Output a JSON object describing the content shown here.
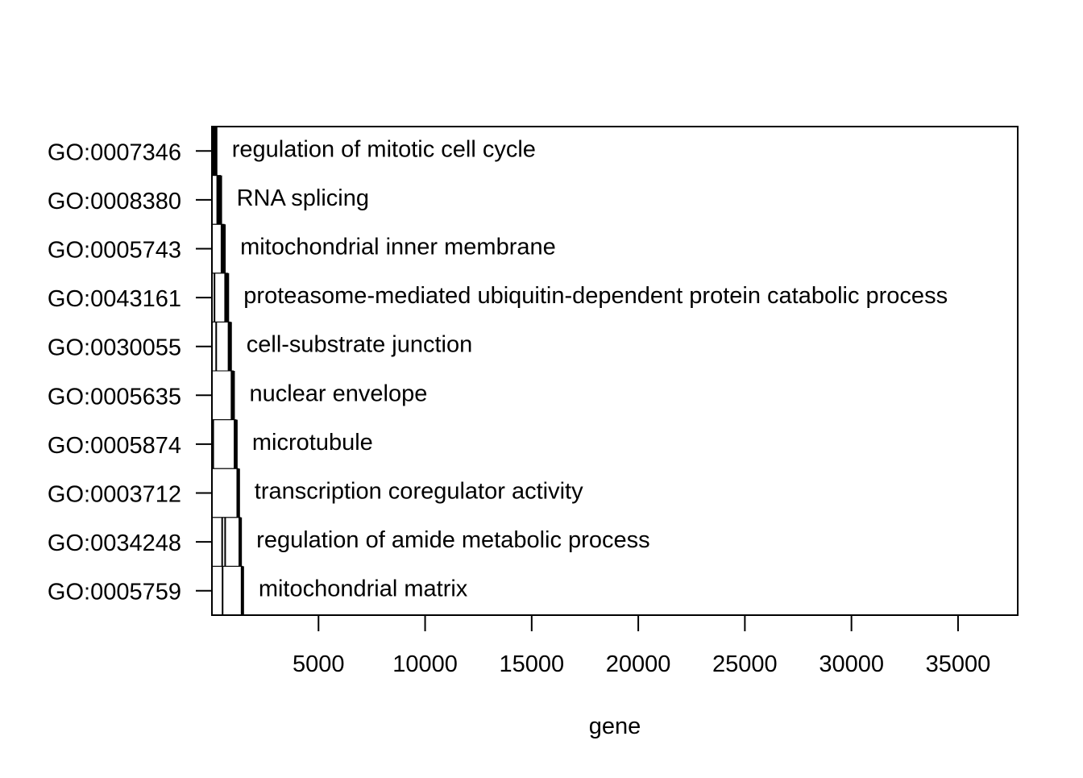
{
  "chart_data": {
    "type": "barcode",
    "xlabel": "gene",
    "ylabel": "",
    "title": "",
    "xlim": [
      0,
      37800
    ],
    "x_ticks": [
      {
        "value": 5000,
        "label": "5000"
      },
      {
        "value": 10000,
        "label": "10000"
      },
      {
        "value": 15000,
        "label": "15000"
      },
      {
        "value": 20000,
        "label": "20000"
      },
      {
        "value": 25000,
        "label": "25000"
      },
      {
        "value": 30000,
        "label": "30000"
      },
      {
        "value": 35000,
        "label": "35000"
      }
    ],
    "rows": [
      {
        "id": "GO:0007346",
        "term": "regulation of mitotic cell cycle",
        "end": 180,
        "gene_positions": [
          40,
          60,
          80,
          100,
          120
        ]
      },
      {
        "id": "GO:0008380",
        "term": "RNA splicing",
        "end": 400,
        "gene_positions": [
          250,
          280,
          300,
          330
        ]
      },
      {
        "id": "GO:0005743",
        "term": "mitochondrial inner membrane",
        "end": 570,
        "gene_positions": [
          450,
          480,
          500,
          520
        ]
      },
      {
        "id": "GO:0043161",
        "term": "proteasome-mediated ubiquitin-dependent protein catabolic process",
        "end": 730,
        "gene_positions": [
          120,
          620,
          650,
          690
        ]
      },
      {
        "id": "GO:0030055",
        "term": "cell-substrate junction",
        "end": 860,
        "gene_positions": [
          200,
          780,
          800,
          820
        ]
      },
      {
        "id": "GO:0005635",
        "term": "nuclear envelope",
        "end": 1000,
        "gene_positions": [
          920,
          950,
          970
        ]
      },
      {
        "id": "GO:0005874",
        "term": "microtubule",
        "end": 1130,
        "gene_positions": [
          60,
          1060,
          1090
        ]
      },
      {
        "id": "GO:0003712",
        "term": "transcription coregulator activity",
        "end": 1240,
        "gene_positions": [
          1190,
          1220
        ]
      },
      {
        "id": "GO:0034248",
        "term": "regulation of amide metabolic process",
        "end": 1330,
        "gene_positions": [
          480,
          620,
          1290,
          1310
        ]
      },
      {
        "id": "GO:0005759",
        "term": "mitochondrial matrix",
        "end": 1430,
        "gene_positions": [
          500,
          1400,
          1420
        ]
      }
    ]
  }
}
